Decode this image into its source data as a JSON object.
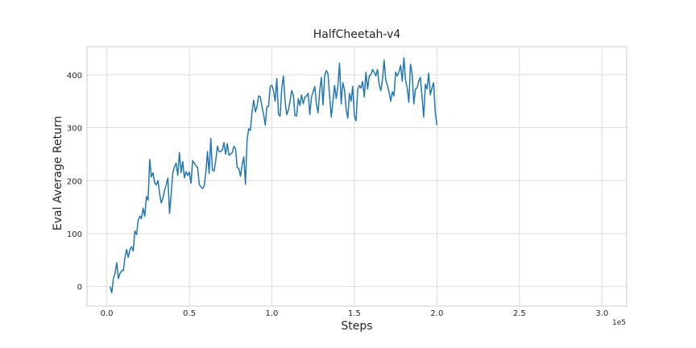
{
  "chart_data": {
    "type": "line",
    "title": "HalfCheetah-v4",
    "xlabel": "Steps",
    "ylabel": "Eval Average Return",
    "x_offset_label": "1e5",
    "xlim": [
      -0.12,
      3.15
    ],
    "ylim": [
      -37,
      453
    ],
    "x_ticks": [
      0.0,
      0.5,
      1.0,
      1.5,
      2.0,
      2.5,
      3.0
    ],
    "x_tick_labels": [
      "0.0",
      "0.5",
      "1.0",
      "1.5",
      "2.0",
      "2.5",
      "3.0"
    ],
    "y_ticks": [
      0,
      100,
      200,
      300,
      400
    ],
    "y_tick_labels": [
      "0",
      "100",
      "200",
      "300",
      "400"
    ],
    "grid": true,
    "line_color": "#1f77b4",
    "series": [
      {
        "x_start": 0.02,
        "x_step": 0.01,
        "values": [
          0,
          -12,
          15,
          25,
          45,
          15,
          25,
          30,
          30,
          55,
          70,
          55,
          70,
          75,
          67,
          105,
          98,
          125,
          133,
          128,
          148,
          133,
          170,
          163,
          240,
          207,
          215,
          196,
          192,
          200,
          175,
          158,
          167,
          182,
          192,
          205,
          138,
          175,
          215,
          226,
          233,
          210,
          253,
          215,
          236,
          205,
          217,
          210,
          216,
          195,
          238,
          233,
          228,
          225,
          193,
          188,
          185,
          190,
          215,
          255,
          213,
          280,
          220,
          218,
          238,
          265,
          255,
          255,
          258,
          272,
          250,
          270,
          248,
          250,
          253,
          265,
          260,
          225,
          223,
          208,
          230,
          245,
          193,
          278,
          298,
          295,
          330,
          352,
          330,
          340,
          360,
          358,
          340,
          325,
          305,
          340,
          340,
          378,
          380,
          370,
          350,
          393,
          325,
          322,
          375,
          398,
          350,
          325,
          333,
          350,
          370,
          362,
          323,
          322,
          355,
          342,
          362,
          345,
          358,
          360,
          365,
          325,
          358,
          368,
          378,
          345,
          328,
          370,
          395,
          343,
          398,
          408,
          402,
          360,
          320,
          350,
          380,
          355,
          378,
          422,
          345,
          385,
          372,
          335,
          318,
          365,
          350,
          378,
          322,
          313,
          372,
          380,
          375,
          387,
          358,
          405,
          373,
          398,
          400,
          410,
          405,
          398,
          410,
          382,
          370,
          390,
          428,
          390,
          380,
          368,
          350,
          368,
          360,
          405,
          398,
          405,
          418,
          388,
          432,
          390,
          375,
          348,
          420,
          402,
          345,
          373,
          375,
          388,
          395,
          358,
          320,
          382,
          373,
          403,
          362,
          375,
          385,
          330,
          305
        ]
      }
    ]
  }
}
